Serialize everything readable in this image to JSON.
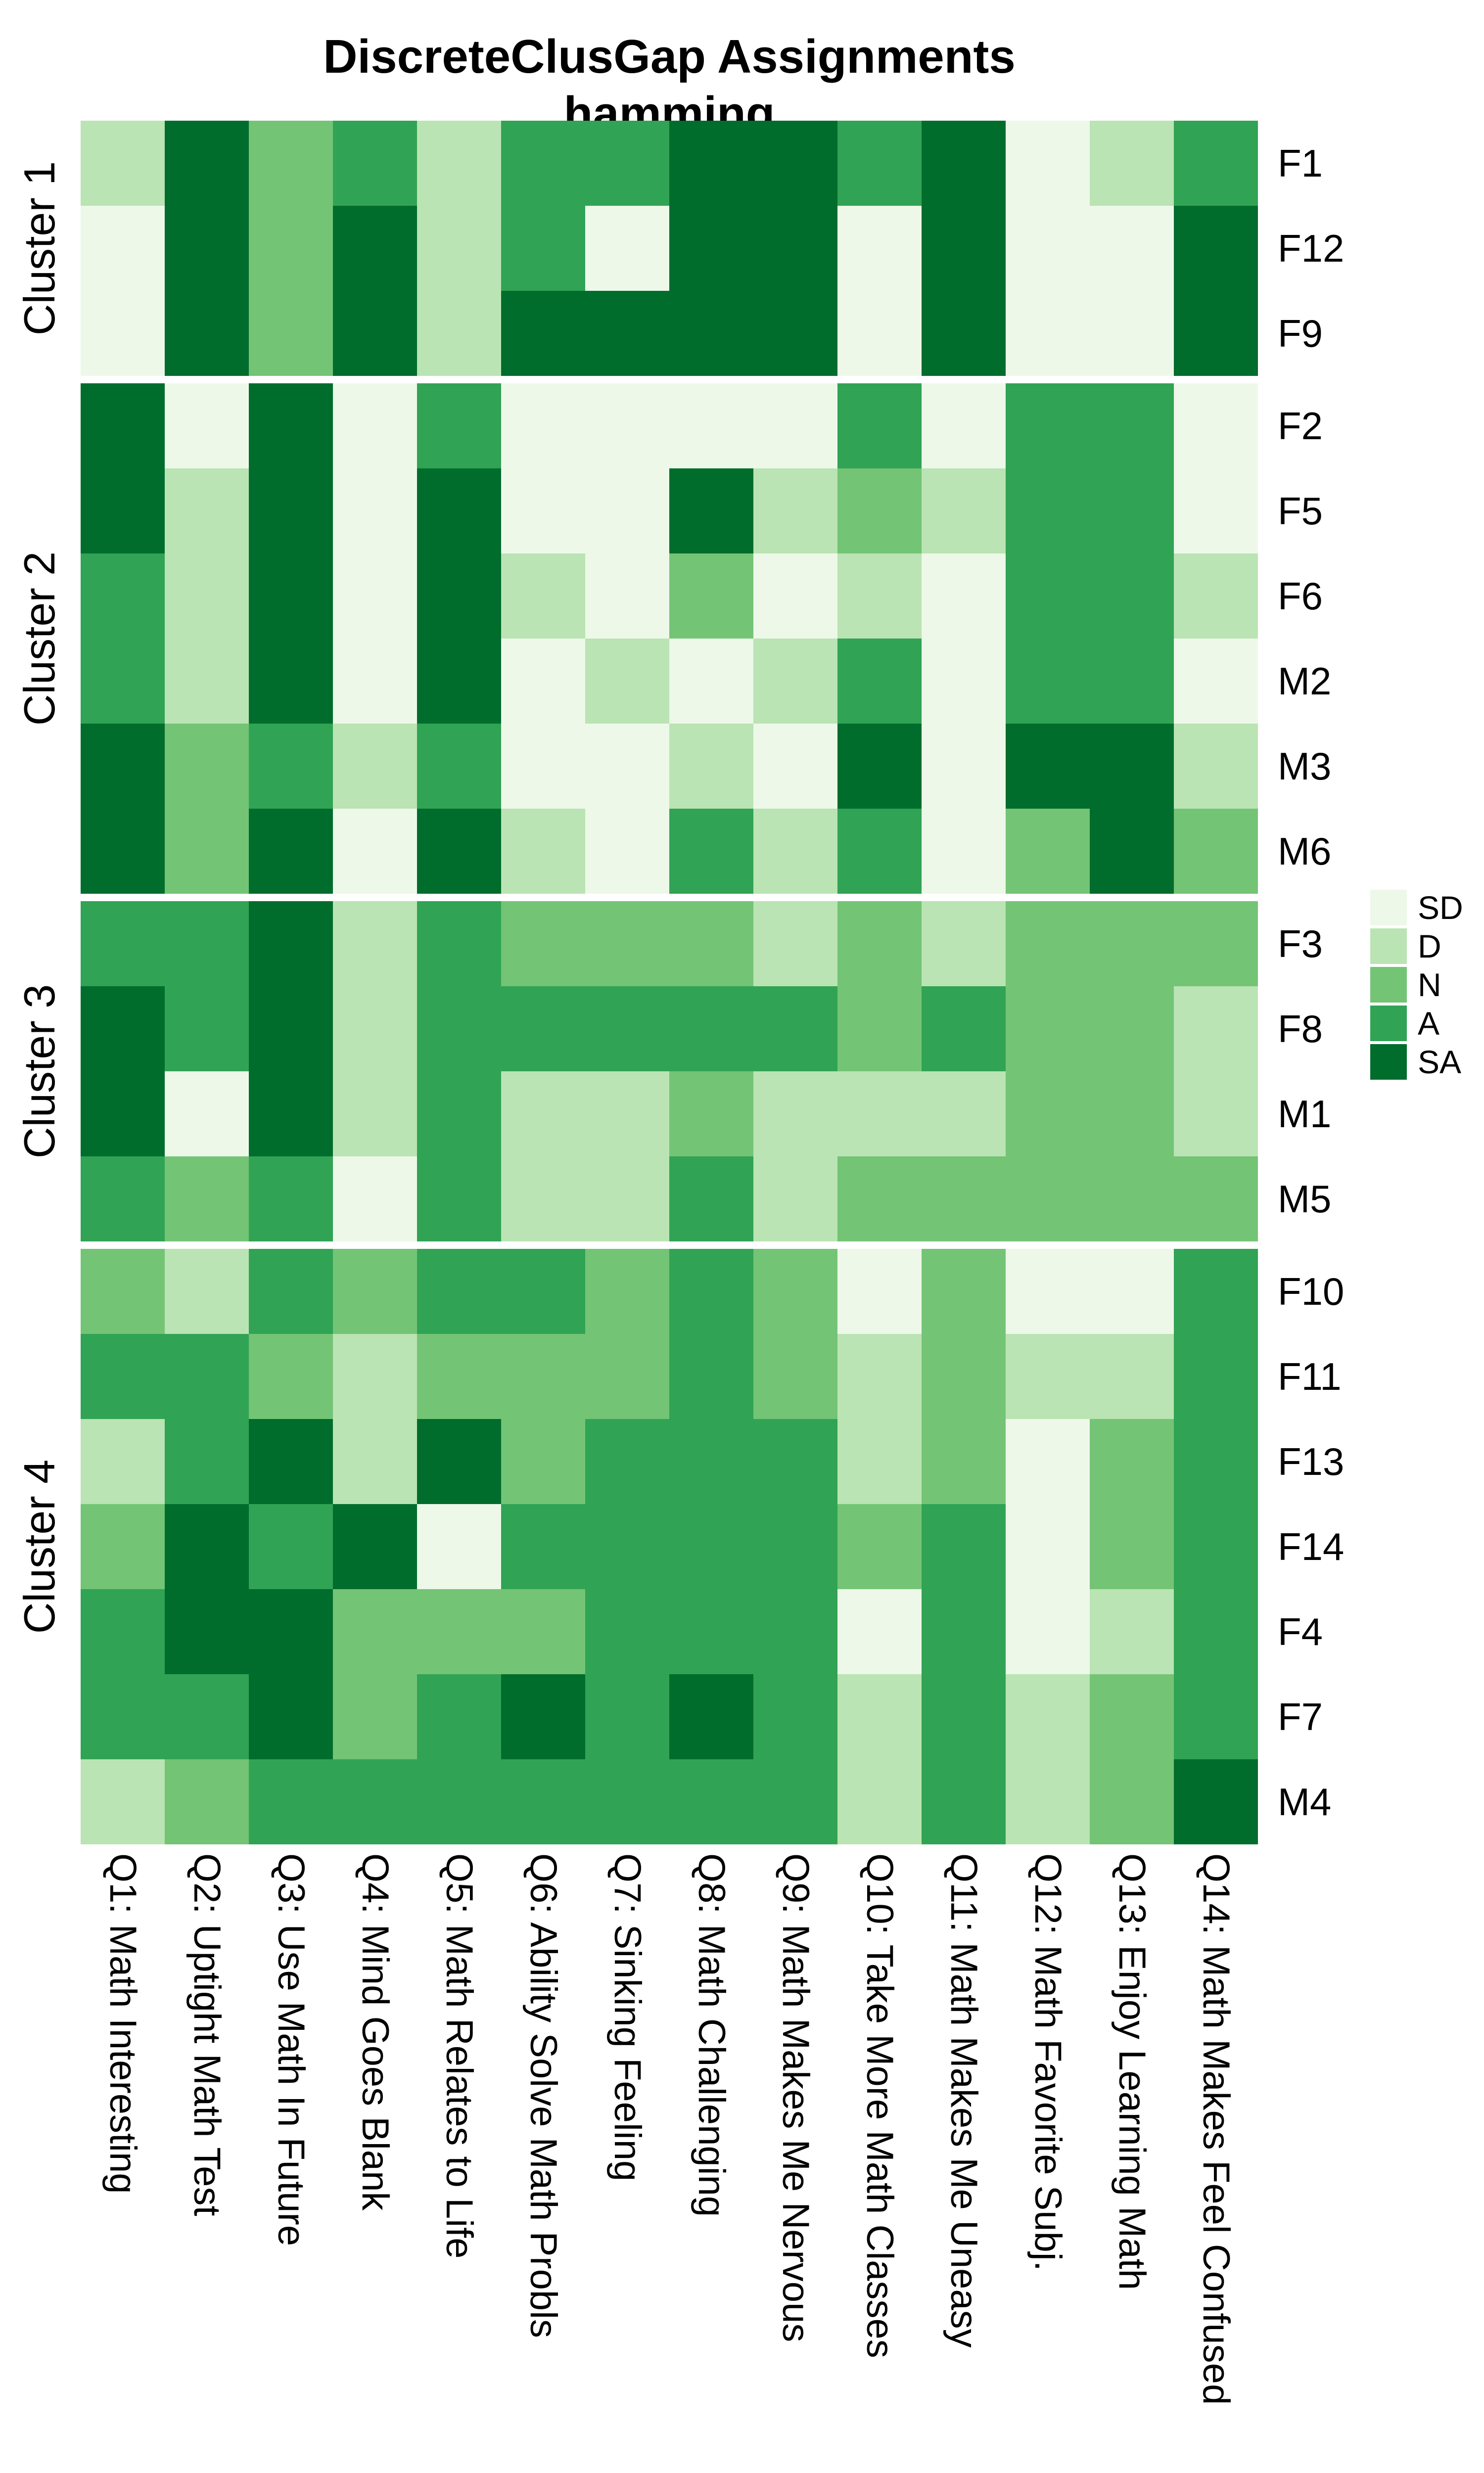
{
  "title": {
    "line1": "DiscreteClusGap Assignments",
    "line2": "hamming"
  },
  "chart_data": {
    "type": "heatmap",
    "title": "DiscreteClusGap Assignments",
    "subtitle": "hamming",
    "levels": [
      "SD",
      "D",
      "N",
      "A",
      "SA"
    ],
    "level_colors": {
      "SD": "#EDF8E9",
      "D": "#BAE4B3",
      "N": "#74C476",
      "A": "#31A354",
      "SA": "#006D2C"
    },
    "legend": {
      "position": "right",
      "entries": [
        "SD",
        "D",
        "N",
        "A",
        "SA"
      ]
    },
    "columns": [
      "Q1: Math Interesting",
      "Q2: Uptight Math Test",
      "Q3: Use Math In Future",
      "Q4: Mind Goes Blank",
      "Q5: Math Relates to Life",
      "Q6: Ability Solve Math Probls",
      "Q7: Sinking Feeling",
      "Q8: Math Challenging",
      "Q9: Math Makes Me Nervous",
      "Q10: Take More Math Classes",
      "Q11: Math Makes Me Uneasy",
      "Q12: Math Favorite Subj.",
      "Q13: Enjoy Learning Math",
      "Q14: Math Makes Feel Confused"
    ],
    "clusters": [
      {
        "name": "Cluster 1",
        "rows": [
          {
            "label": "F1",
            "values": [
              "D",
              "SA",
              "N",
              "A",
              "D",
              "A",
              "A",
              "SA",
              "SA",
              "A",
              "SA",
              "SD",
              "D",
              "A"
            ]
          },
          {
            "label": "F12",
            "values": [
              "SD",
              "SA",
              "N",
              "SA",
              "D",
              "A",
              "SD",
              "SA",
              "SA",
              "SD",
              "SA",
              "SD",
              "SD",
              "SA"
            ]
          },
          {
            "label": "F9",
            "values": [
              "SD",
              "SA",
              "N",
              "SA",
              "D",
              "SA",
              "SA",
              "SA",
              "SA",
              "SD",
              "SA",
              "SD",
              "SD",
              "SA"
            ]
          }
        ]
      },
      {
        "name": "Cluster 2",
        "rows": [
          {
            "label": "F2",
            "values": [
              "SA",
              "SD",
              "SA",
              "SD",
              "A",
              "SD",
              "SD",
              "SD",
              "SD",
              "A",
              "SD",
              "A",
              "A",
              "SD"
            ]
          },
          {
            "label": "F5",
            "values": [
              "SA",
              "D",
              "SA",
              "SD",
              "SA",
              "SD",
              "SD",
              "SA",
              "D",
              "N",
              "D",
              "A",
              "A",
              "SD"
            ]
          },
          {
            "label": "F6",
            "values": [
              "A",
              "D",
              "SA",
              "SD",
              "SA",
              "D",
              "SD",
              "N",
              "SD",
              "D",
              "SD",
              "A",
              "A",
              "D"
            ]
          },
          {
            "label": "M2",
            "values": [
              "A",
              "D",
              "SA",
              "SD",
              "SA",
              "SD",
              "D",
              "SD",
              "D",
              "A",
              "SD",
              "A",
              "A",
              "SD"
            ]
          },
          {
            "label": "M3",
            "values": [
              "SA",
              "N",
              "A",
              "D",
              "A",
              "SD",
              "SD",
              "D",
              "SD",
              "SA",
              "SD",
              "SA",
              "SA",
              "D"
            ]
          },
          {
            "label": "M6",
            "values": [
              "SA",
              "N",
              "SA",
              "SD",
              "SA",
              "D",
              "SD",
              "A",
              "D",
              "A",
              "SD",
              "N",
              "SA",
              "N"
            ]
          }
        ]
      },
      {
        "name": "Cluster 3",
        "rows": [
          {
            "label": "F3",
            "values": [
              "A",
              "A",
              "SA",
              "D",
              "A",
              "N",
              "N",
              "N",
              "D",
              "N",
              "D",
              "N",
              "N",
              "N"
            ]
          },
          {
            "label": "F8",
            "values": [
              "SA",
              "A",
              "SA",
              "D",
              "A",
              "A",
              "A",
              "A",
              "A",
              "N",
              "A",
              "N",
              "N",
              "D"
            ]
          },
          {
            "label": "M1",
            "values": [
              "SA",
              "SD",
              "SA",
              "D",
              "A",
              "D",
              "D",
              "N",
              "D",
              "D",
              "D",
              "N",
              "N",
              "D"
            ]
          },
          {
            "label": "M5",
            "values": [
              "A",
              "N",
              "A",
              "SD",
              "A",
              "D",
              "D",
              "A",
              "D",
              "N",
              "N",
              "N",
              "N",
              "N"
            ]
          }
        ]
      },
      {
        "name": "Cluster 4",
        "rows": [
          {
            "label": "F10",
            "values": [
              "N",
              "D",
              "A",
              "N",
              "A",
              "A",
              "N",
              "A",
              "N",
              "SD",
              "N",
              "SD",
              "SD",
              "A"
            ]
          },
          {
            "label": "F11",
            "values": [
              "A",
              "A",
              "N",
              "D",
              "N",
              "N",
              "N",
              "A",
              "N",
              "D",
              "N",
              "D",
              "D",
              "A"
            ]
          },
          {
            "label": "F13",
            "values": [
              "D",
              "A",
              "SA",
              "D",
              "SA",
              "N",
              "A",
              "A",
              "A",
              "D",
              "N",
              "SD",
              "N",
              "A"
            ]
          },
          {
            "label": "F14",
            "values": [
              "N",
              "SA",
              "A",
              "SA",
              "SD",
              "A",
              "A",
              "A",
              "A",
              "N",
              "A",
              "SD",
              "N",
              "A"
            ]
          },
          {
            "label": "F4",
            "values": [
              "A",
              "SA",
              "SA",
              "N",
              "N",
              "N",
              "A",
              "A",
              "A",
              "SD",
              "A",
              "SD",
              "D",
              "A"
            ]
          },
          {
            "label": "F7",
            "values": [
              "A",
              "A",
              "SA",
              "N",
              "A",
              "SA",
              "A",
              "SA",
              "A",
              "D",
              "A",
              "D",
              "N",
              "A"
            ]
          },
          {
            "label": "M4",
            "values": [
              "D",
              "N",
              "A",
              "A",
              "A",
              "A",
              "A",
              "A",
              "A",
              "D",
              "A",
              "D",
              "N",
              "SA"
            ]
          }
        ]
      }
    ]
  }
}
